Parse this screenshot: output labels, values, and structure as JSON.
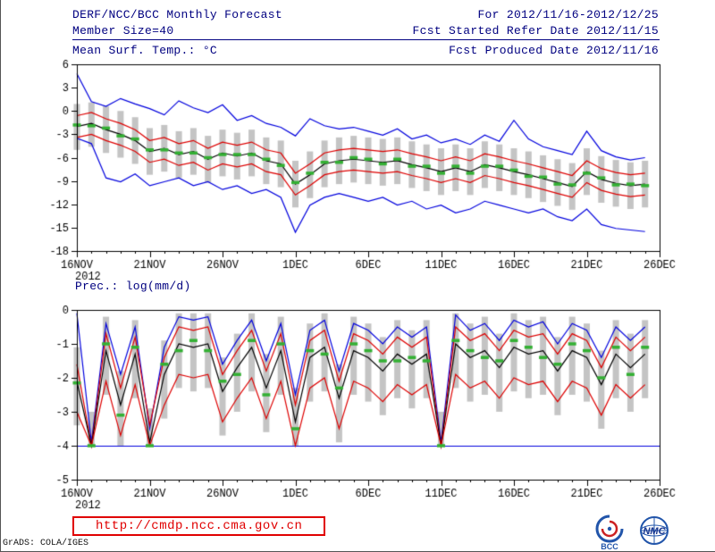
{
  "header": {
    "title": "DERF/NCC/BCC Monthly Forecast",
    "for_range": "For 2012/11/16-2012/12/25",
    "member_size": "Member Size=40",
    "fcst_started": "Fcst Started Refer Date 2012/11/15",
    "var_label": "Mean Surf. Temp.: °C",
    "fcst_produced": "Fcst Produced Date 2012/11/16"
  },
  "footer": {
    "url": "http://cmdp.ncc.cma.gov.cn",
    "credit": "GrADS: COLA/IGES",
    "logos": [
      {
        "name": "bcc-logo",
        "label": "BCC"
      },
      {
        "name": "nmc-logo",
        "label": "NMC"
      }
    ]
  },
  "chart_data": [
    {
      "type": "line",
      "title": "Mean Surf. Temp.: °C",
      "xlim": [
        0,
        40
      ],
      "ylim": [
        -18,
        6
      ],
      "y_ticks": [
        6,
        3,
        0,
        -3,
        -6,
        -9,
        -12,
        -15,
        -18
      ],
      "x_tick_positions": [
        0,
        5,
        10,
        15,
        20,
        25,
        30,
        35,
        40
      ],
      "x_tick_labels": [
        "16NOV",
        "21NOV",
        "26NOV",
        "1DEC",
        "6DEC",
        "11DEC",
        "16DEC",
        "21DEC",
        "26DEC"
      ],
      "x_sub_label": "2012",
      "bars": {
        "color": "#c4c4c4",
        "top": [
          0.9,
          1.1,
          0.6,
          0.0,
          -0.8,
          -2.2,
          -1.8,
          -2.6,
          -2.2,
          -3.2,
          -2.4,
          -2.8,
          -2.4,
          -3.4,
          -3.8,
          -6.4,
          -5.2,
          -3.8,
          -3.4,
          -3.2,
          -3.4,
          -3.6,
          -3.4,
          -3.9,
          -4.3,
          -4.8,
          -4.3,
          -4.8,
          -3.9,
          -4.3,
          -4.8,
          -5.2,
          -5.7,
          -6.2,
          -6.7,
          -4.8,
          -5.8,
          -6.3,
          -6.6,
          -6.4
        ],
        "bottom": [
          -5.0,
          -4.6,
          -5.4,
          -6.0,
          -6.8,
          -8.2,
          -7.8,
          -8.6,
          -8.2,
          -9.2,
          -8.4,
          -8.8,
          -8.4,
          -9.4,
          -9.8,
          -12.4,
          -11.2,
          -9.8,
          -9.4,
          -9.2,
          -9.4,
          -9.6,
          -9.4,
          -9.9,
          -10.3,
          -10.8,
          -10.3,
          -10.8,
          -9.9,
          -10.3,
          -10.8,
          -11.2,
          -11.7,
          -12.2,
          -12.7,
          -10.8,
          -11.8,
          -12.3,
          -12.6,
          -12.4
        ]
      },
      "series": [
        {
          "name": "ensemble-max",
          "color": "#0000dd",
          "style": "line",
          "values": [
            4.8,
            1.2,
            0.6,
            1.6,
            0.9,
            0.3,
            -0.5,
            1.3,
            0.4,
            -0.2,
            0.8,
            -1.2,
            -0.6,
            -1.6,
            -2.1,
            -3.2,
            -1.0,
            -1.9,
            -2.3,
            -2.1,
            -2.6,
            -3.1,
            -2.3,
            -3.6,
            -3.1,
            -4.1,
            -3.6,
            -4.3,
            -3.1,
            -3.9,
            -1.2,
            -3.6,
            -4.6,
            -5.1,
            -5.6,
            -2.6,
            -5.1,
            -5.9,
            -6.3,
            -6.0
          ]
        },
        {
          "name": "upper-quartile",
          "color": "#dd0000",
          "style": "line",
          "values": [
            -0.6,
            -0.2,
            -1.0,
            -1.6,
            -2.4,
            -3.8,
            -3.4,
            -4.2,
            -3.8,
            -4.8,
            -4.0,
            -4.4,
            -4.0,
            -5.0,
            -5.4,
            -8.0,
            -6.8,
            -5.4,
            -5.0,
            -4.8,
            -5.0,
            -5.2,
            -5.0,
            -5.5,
            -5.9,
            -6.4,
            -5.9,
            -6.4,
            -5.5,
            -5.9,
            -6.4,
            -6.8,
            -7.3,
            -7.8,
            -8.3,
            -6.4,
            -7.4,
            -7.9,
            -8.2,
            -8.0
          ]
        },
        {
          "name": "ensemble-mean",
          "color": "#000000",
          "style": "line",
          "values": [
            -2.0,
            -1.6,
            -2.4,
            -3.0,
            -3.8,
            -5.2,
            -4.8,
            -5.6,
            -5.2,
            -6.2,
            -5.4,
            -5.8,
            -5.4,
            -6.4,
            -6.8,
            -9.4,
            -8.2,
            -6.8,
            -6.4,
            -6.2,
            -6.4,
            -6.6,
            -6.4,
            -6.9,
            -7.3,
            -7.8,
            -7.3,
            -7.8,
            -6.9,
            -7.3,
            -7.8,
            -8.2,
            -8.7,
            -9.2,
            -9.7,
            -7.8,
            -8.8,
            -9.3,
            -9.6,
            -9.4
          ]
        },
        {
          "name": "lower-quartile",
          "color": "#dd0000",
          "style": "line",
          "values": [
            -3.4,
            -3.0,
            -3.8,
            -4.4,
            -5.2,
            -6.6,
            -6.2,
            -7.0,
            -6.6,
            -7.6,
            -6.8,
            -7.2,
            -6.8,
            -7.8,
            -8.2,
            -10.8,
            -9.6,
            -8.2,
            -7.8,
            -7.6,
            -7.8,
            -8.0,
            -7.8,
            -8.3,
            -8.7,
            -9.2,
            -8.7,
            -9.2,
            -8.3,
            -8.7,
            -9.2,
            -9.6,
            -10.1,
            -10.6,
            -11.1,
            -9.2,
            -10.2,
            -10.7,
            -11.0,
            -10.8
          ]
        },
        {
          "name": "ensemble-min",
          "color": "#0000dd",
          "style": "line",
          "values": [
            -3.5,
            -4.2,
            -8.6,
            -9.1,
            -8.1,
            -9.6,
            -9.1,
            -8.6,
            -9.6,
            -9.1,
            -10.1,
            -9.6,
            -10.6,
            -10.1,
            -11.1,
            -15.6,
            -12.1,
            -11.1,
            -10.6,
            -11.1,
            -11.6,
            -11.1,
            -12.1,
            -11.6,
            -12.6,
            -12.1,
            -13.1,
            -12.6,
            -11.6,
            -12.1,
            -12.6,
            -13.1,
            -12.6,
            -13.6,
            -14.1,
            -12.6,
            -14.6,
            -15.1,
            -15.3,
            -15.5
          ]
        },
        {
          "name": "ensemble-median",
          "color": "#33b033",
          "style": "dashes",
          "values": [
            -1.8,
            -1.9,
            -2.2,
            -3.2,
            -3.6,
            -5.0,
            -5.0,
            -5.4,
            -5.4,
            -6.0,
            -5.6,
            -5.6,
            -5.6,
            -6.2,
            -7.0,
            -9.2,
            -8.0,
            -6.6,
            -6.6,
            -6.0,
            -6.2,
            -6.8,
            -6.2,
            -7.1,
            -7.1,
            -8.0,
            -7.1,
            -8.0,
            -7.1,
            -7.1,
            -7.6,
            -8.4,
            -8.5,
            -9.4,
            -9.5,
            -8.0,
            -8.6,
            -9.5,
            -9.4,
            -9.6
          ]
        }
      ]
    },
    {
      "type": "line",
      "title": "Prec.: log(mm/d)",
      "xlim": [
        0,
        40
      ],
      "ylim": [
        -5,
        0
      ],
      "y_ticks": [
        0,
        -1,
        -2,
        -3,
        -4,
        -5
      ],
      "x_tick_positions": [
        0,
        5,
        10,
        15,
        20,
        25,
        30,
        35,
        40
      ],
      "x_tick_labels": [
        "16NOV",
        "21NOV",
        "26NOV",
        "1DEC",
        "6DEC",
        "11DEC",
        "16DEC",
        "21DEC",
        "26DEC"
      ],
      "x_sub_label": "2012",
      "baseline": -4,
      "baseline_color": "#0000dd",
      "bars": {
        "color": "#c4c4c4",
        "top": [
          -1.1,
          -3.0,
          -0.2,
          -1.8,
          -0.3,
          -2.9,
          -0.9,
          -0.1,
          -0.1,
          -0.1,
          -1.4,
          -0.7,
          -0.1,
          -1.3,
          -0.2,
          -2.3,
          -0.4,
          -0.1,
          -1.6,
          -0.2,
          -0.4,
          -0.8,
          -0.3,
          -0.6,
          -0.3,
          -3.0,
          -0.1,
          -0.4,
          -0.2,
          -0.7,
          -0.1,
          -0.3,
          -0.2,
          -0.8,
          -0.2,
          -0.4,
          -1.2,
          -0.3,
          -0.7,
          -0.3
        ],
        "bottom": [
          -3.4,
          -4.0,
          -2.5,
          -4.0,
          -2.6,
          -4.0,
          -3.2,
          -2.3,
          -2.4,
          -2.3,
          -3.7,
          -3.0,
          -2.4,
          -3.6,
          -2.5,
          -4.0,
          -2.7,
          -2.4,
          -3.9,
          -2.5,
          -2.7,
          -3.1,
          -2.6,
          -2.9,
          -2.6,
          -4.0,
          -2.3,
          -2.7,
          -2.5,
          -3.0,
          -2.4,
          -2.6,
          -2.5,
          -3.1,
          -2.5,
          -2.7,
          -3.5,
          -2.6,
          -3.0,
          -2.6
        ]
      },
      "series": [
        {
          "name": "ensemble-max",
          "color": "#0000dd",
          "style": "line",
          "values": [
            -0.1,
            -3.9,
            -0.4,
            -1.9,
            -0.5,
            -3.5,
            -1.1,
            -0.2,
            -0.3,
            -0.2,
            -1.6,
            -0.9,
            -0.3,
            -1.5,
            -0.4,
            -2.5,
            -0.6,
            -0.3,
            -1.8,
            -0.4,
            -0.6,
            -1.0,
            -0.5,
            -0.8,
            -0.5,
            -3.9,
            -0.15,
            -0.6,
            -0.4,
            -0.9,
            -0.3,
            -0.5,
            -0.35,
            -1.0,
            -0.4,
            -0.6,
            -1.4,
            -0.5,
            -0.9,
            -0.5
          ]
        },
        {
          "name": "upper-quartile",
          "color": "#dd0000",
          "style": "line",
          "values": [
            -1.6,
            -4.0,
            -0.7,
            -2.3,
            -0.8,
            -3.4,
            -1.4,
            -0.5,
            -0.6,
            -0.5,
            -1.9,
            -1.2,
            -0.6,
            -1.8,
            -0.7,
            -2.8,
            -0.9,
            -0.6,
            -2.1,
            -0.7,
            -0.9,
            -1.3,
            -0.8,
            -1.1,
            -0.8,
            -4.0,
            -0.5,
            -0.9,
            -0.7,
            -1.2,
            -0.6,
            -0.8,
            -0.7,
            -1.3,
            -0.7,
            -0.9,
            -1.7,
            -0.8,
            -1.2,
            -0.8
          ]
        },
        {
          "name": "ensemble-mean",
          "color": "#000000",
          "style": "line",
          "values": [
            -2.1,
            -4.0,
            -1.2,
            -2.8,
            -1.3,
            -3.9,
            -1.9,
            -1.0,
            -1.1,
            -1.0,
            -2.4,
            -1.7,
            -1.1,
            -2.3,
            -1.2,
            -3.3,
            -1.4,
            -1.1,
            -2.6,
            -1.2,
            -1.4,
            -1.8,
            -1.3,
            -1.6,
            -1.3,
            -4.0,
            -1.0,
            -1.4,
            -1.2,
            -1.7,
            -1.1,
            -1.3,
            -1.2,
            -1.8,
            -1.2,
            -1.4,
            -2.2,
            -1.3,
            -1.7,
            -1.3
          ]
        },
        {
          "name": "lower-quartile",
          "color": "#dd0000",
          "style": "line",
          "values": [
            -3.0,
            -4.0,
            -2.1,
            -3.7,
            -2.2,
            -4.0,
            -2.8,
            -1.9,
            -2.0,
            -1.9,
            -3.3,
            -2.6,
            -2.0,
            -3.2,
            -2.1,
            -4.0,
            -2.3,
            -2.0,
            -3.5,
            -2.1,
            -2.3,
            -2.7,
            -2.2,
            -2.5,
            -2.2,
            -4.0,
            -1.9,
            -2.3,
            -2.1,
            -2.6,
            -2.0,
            -2.2,
            -2.1,
            -2.7,
            -2.1,
            -2.3,
            -3.1,
            -2.2,
            -2.6,
            -2.2
          ]
        },
        {
          "name": "ensemble-median",
          "color": "#33b033",
          "style": "dashes",
          "values": [
            -2.15,
            -4.0,
            -1.0,
            -3.1,
            -1.1,
            -4.0,
            -1.6,
            -1.2,
            -0.9,
            -1.2,
            -2.1,
            -1.9,
            -0.9,
            -2.5,
            -1.0,
            -3.5,
            -1.2,
            -1.3,
            -2.3,
            -1.0,
            -1.2,
            -1.5,
            -1.5,
            -1.4,
            -1.5,
            -4.0,
            -0.9,
            -1.2,
            -1.4,
            -1.5,
            -0.9,
            -1.1,
            -1.4,
            -1.6,
            -1.0,
            -1.2,
            -2.0,
            -1.1,
            -1.9,
            -1.1
          ]
        }
      ]
    }
  ]
}
